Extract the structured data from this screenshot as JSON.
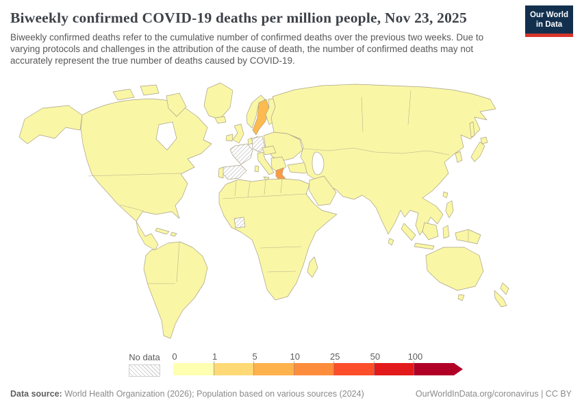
{
  "header": {
    "title": "Biweekly confirmed COVID-19 deaths per million people, Nov 23, 2025",
    "subtitle": "Biweekly confirmed deaths refer to the cumulative number of confirmed deaths over the previous two weeks. Due to varying protocols and challenges in the attribution of the cause of death, the number of confirmed deaths may not accurately represent the true number of deaths caused by COVID-19.",
    "logo": {
      "line1": "Our World",
      "line2": "in Data",
      "bg_color": "#12304e",
      "accent_color": "#d8352a"
    }
  },
  "legend": {
    "no_data_label": "No data",
    "ticks": [
      "0",
      "1",
      "5",
      "10",
      "25",
      "50",
      "100"
    ],
    "colors": [
      "#ffffb2",
      "#fed976",
      "#feb24c",
      "#fd8d3c",
      "#fc4e2a",
      "#e31a1c",
      "#b10026"
    ]
  },
  "map": {
    "ocean_color": "#ffffff",
    "default_fill": "#f9f6a6",
    "border_color": "#a9a183",
    "no_data_hatch_color": "#d4d4d4",
    "regions": {
      "sweden": {
        "color": "#fdba4f"
      },
      "estonia": {
        "color": "#fed976"
      },
      "latvia": {
        "color": "#feb24c"
      },
      "greece": {
        "color": "#fd9a43"
      },
      "france": {
        "no_data": true
      },
      "spain": {
        "no_data": true
      },
      "germany": {
        "no_data": true
      },
      "cote_divoire": {
        "no_data": true
      }
    }
  },
  "footer": {
    "source_label": "Data source:",
    "source_text": " World Health Organization (2026); Population based on various sources (2024)",
    "right_text": "OurWorldInData.org/coronavirus | CC BY"
  },
  "chart_data": {
    "type": "choropleth_map",
    "title": "Biweekly confirmed COVID-19 deaths per million people",
    "date": "Nov 23, 2025",
    "unit": "biweekly confirmed deaths per million people",
    "legend_bin_edges": [
      0,
      1,
      5,
      10,
      25,
      50,
      100
    ],
    "legend_bin_colors": [
      "#ffffb2",
      "#fed976",
      "#feb24c",
      "#fd8d3c",
      "#fc4e2a",
      "#e31a1c",
      "#b10026"
    ],
    "legend_open_ended_top": true,
    "default_bin": "0-1",
    "highlighted_countries": [
      {
        "name": "Sweden",
        "bin": "5-10"
      },
      {
        "name": "Latvia",
        "bin": "5-10"
      },
      {
        "name": "Estonia",
        "bin": "1-5"
      },
      {
        "name": "Greece",
        "bin": "10-25"
      }
    ],
    "no_data_countries": [
      "France",
      "Spain",
      "Germany",
      "Côte d'Ivoire"
    ],
    "legend_position": "bottom",
    "projection": "world, equirectangular-like, Antarctica not shown"
  }
}
